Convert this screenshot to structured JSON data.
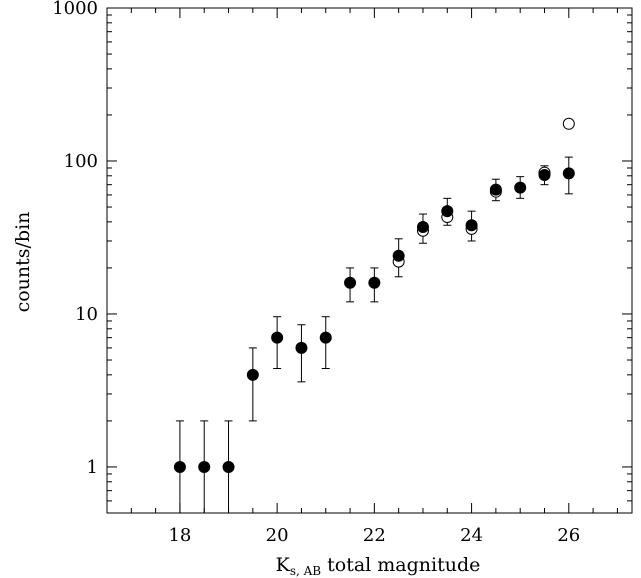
{
  "chart_data": {
    "type": "scatter",
    "title": "",
    "xlabel_main": "K",
    "xlabel_sub": "s, AB",
    "xlabel_rest": " total magnitude",
    "ylabel": "counts/bin",
    "xlim": [
      16.5,
      27.3
    ],
    "ylim": [
      0.5,
      1000
    ],
    "y_scale": "log",
    "x_ticks": [
      18,
      20,
      22,
      24,
      26
    ],
    "x_tick_labels": [
      "18",
      "20",
      "22",
      "24",
      "26"
    ],
    "x_minor_step": 0.5,
    "y_ticks": [
      1,
      10,
      100,
      1000
    ],
    "y_tick_labels": [
      "1",
      "10",
      "100",
      "1000"
    ],
    "grid": false,
    "series": [
      {
        "marker": "filled-circle",
        "error_bars": true,
        "points": [
          {
            "x": 18.0,
            "y": 1,
            "lo": 0.5,
            "hi": 2.0
          },
          {
            "x": 18.5,
            "y": 1,
            "lo": 0.5,
            "hi": 2.0
          },
          {
            "x": 19.0,
            "y": 1,
            "lo": 0.5,
            "hi": 2.0
          },
          {
            "x": 19.5,
            "y": 4,
            "lo": 2.0,
            "hi": 6.0
          },
          {
            "x": 20.0,
            "y": 7,
            "lo": 4.4,
            "hi": 9.6
          },
          {
            "x": 20.5,
            "y": 6,
            "lo": 3.6,
            "hi": 8.5
          },
          {
            "x": 21.0,
            "y": 7,
            "lo": 4.4,
            "hi": 9.6
          },
          {
            "x": 21.5,
            "y": 16,
            "lo": 12,
            "hi": 20
          },
          {
            "x": 22.0,
            "y": 16,
            "lo": 12,
            "hi": 20
          },
          {
            "x": 22.5,
            "y": 24,
            "lo": 17.5,
            "hi": 31
          },
          {
            "x": 23.0,
            "y": 37,
            "lo": 29,
            "hi": 45
          },
          {
            "x": 23.5,
            "y": 47,
            "lo": 38,
            "hi": 57
          },
          {
            "x": 24.0,
            "y": 38,
            "lo": 30,
            "hi": 47
          },
          {
            "x": 24.5,
            "y": 65,
            "lo": 55,
            "hi": 76
          },
          {
            "x": 25.0,
            "y": 67,
            "lo": 57,
            "hi": 79
          },
          {
            "x": 25.5,
            "y": 81,
            "lo": 70,
            "hi": 93
          },
          {
            "x": 26.0,
            "y": 83,
            "lo": 61,
            "hi": 106
          }
        ]
      },
      {
        "marker": "open-circle",
        "error_bars": false,
        "points": [
          {
            "x": 22.5,
            "y": 22
          },
          {
            "x": 23.0,
            "y": 35
          },
          {
            "x": 23.5,
            "y": 43
          },
          {
            "x": 24.0,
            "y": 36
          },
          {
            "x": 24.5,
            "y": 63
          },
          {
            "x": 25.5,
            "y": 84
          },
          {
            "x": 26.0,
            "y": 175
          }
        ]
      }
    ]
  }
}
